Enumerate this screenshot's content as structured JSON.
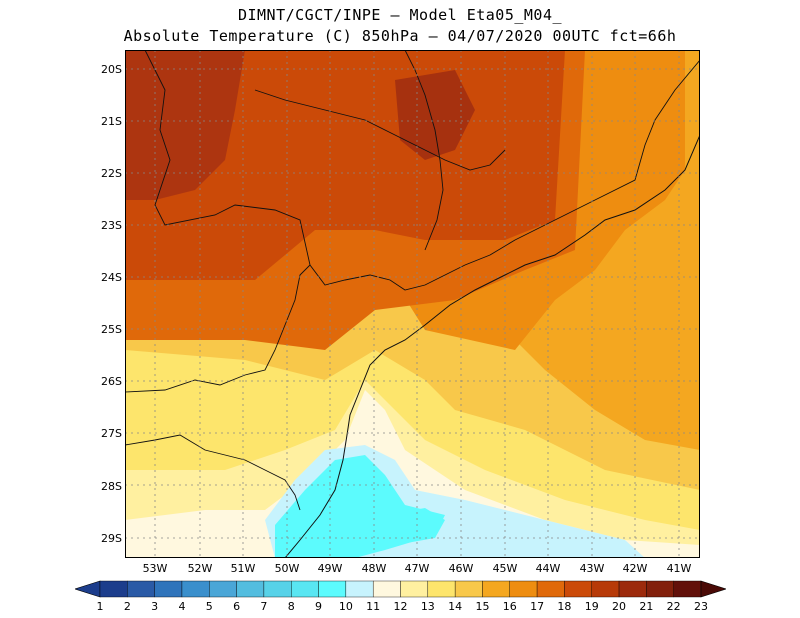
{
  "header": {
    "line1": "DIMNT/CGCT/INPE –  Model Eta05_M04_",
    "line2": "Absolute Temperature (C) 850hPa –  04/07/2020 00UTC fct=66h"
  },
  "map": {
    "lat_labels": [
      "20S",
      "21S",
      "22S",
      "23S",
      "24S",
      "25S",
      "26S",
      "27S",
      "28S",
      "29S"
    ],
    "lon_labels": [
      "53W",
      "52W",
      "51W",
      "50W",
      "49W",
      "48W",
      "47W",
      "46W",
      "45W",
      "44W",
      "43W",
      "42W",
      "41W"
    ],
    "grid": "dotted",
    "field_colors": {
      "cold_cyan": "#5cfbfd",
      "light_cyan": "#c7f3fd",
      "cream": "#fff8df",
      "pale_yellow": "#fff0a0",
      "yellow": "#fde56c",
      "gold": "#f8c84a",
      "orange_light": "#f4a720",
      "orange": "#ee8d10",
      "orange_dark": "#e0690a",
      "red_orange": "#cb4a08",
      "dark_red": "#ad3510"
    }
  },
  "colorbar": {
    "labels": [
      "1",
      "2",
      "3",
      "4",
      "5",
      "6",
      "7",
      "8",
      "9",
      "10",
      "11",
      "12",
      "13",
      "14",
      "15",
      "16",
      "17",
      "18",
      "19",
      "20",
      "21",
      "22",
      "23"
    ],
    "colors": [
      "#1c3d8c",
      "#2a5aa6",
      "#2f74bb",
      "#3a8fcc",
      "#4aa6d7",
      "#53bddf",
      "#57d2e8",
      "#59e6f2",
      "#5cfbfd",
      "#c7f3fd",
      "#fff8df",
      "#fff0a0",
      "#fde56c",
      "#f8c84a",
      "#f4a720",
      "#ee8d10",
      "#e0690a",
      "#cb4a08",
      "#b73a08",
      "#9c2a0c",
      "#82200c",
      "#62100a"
    ],
    "end_low": "#1c3d8c",
    "end_high": "#4a0a06"
  }
}
